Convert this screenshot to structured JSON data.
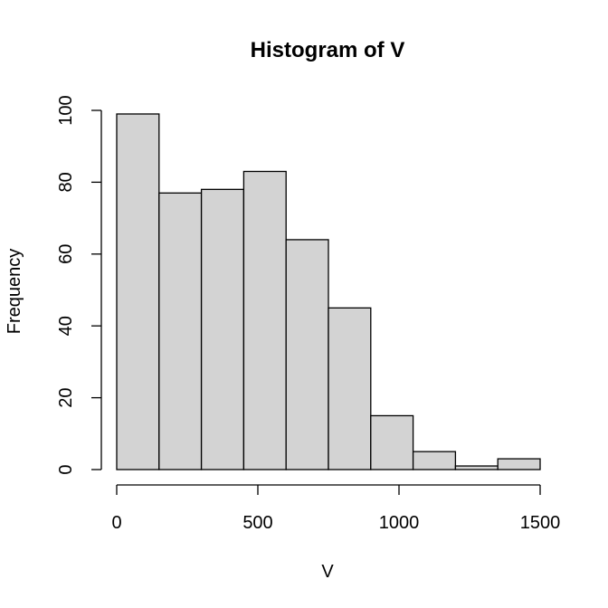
{
  "chart_data": {
    "type": "bar",
    "title": "Histogram of V",
    "xlabel": "V",
    "ylabel": "Frequency",
    "bin_width": 150,
    "bins": [
      {
        "start": 0,
        "end": 150,
        "count": 99
      },
      {
        "start": 150,
        "end": 300,
        "count": 77
      },
      {
        "start": 300,
        "end": 450,
        "count": 78
      },
      {
        "start": 450,
        "end": 600,
        "count": 83
      },
      {
        "start": 600,
        "end": 750,
        "count": 64
      },
      {
        "start": 750,
        "end": 900,
        "count": 45
      },
      {
        "start": 900,
        "end": 1050,
        "count": 15
      },
      {
        "start": 1050,
        "end": 1200,
        "count": 5
      },
      {
        "start": 1200,
        "end": 1350,
        "count": 1
      },
      {
        "start": 1350,
        "end": 1500,
        "count": 3
      }
    ],
    "x_ticks": [
      0,
      500,
      1000,
      1500
    ],
    "x_tick_labels": [
      "0",
      "500",
      "1000",
      "1500"
    ],
    "y_ticks": [
      0,
      20,
      40,
      60,
      80,
      100
    ],
    "y_tick_labels": [
      "0",
      "20",
      "40",
      "60",
      "80",
      "100"
    ],
    "xlim": [
      0,
      1500
    ],
    "ylim": [
      0,
      100
    ],
    "grid": false,
    "legend": "none",
    "colors": {
      "bar_fill": "#d3d3d3",
      "bar_stroke": "#000000",
      "axis": "#000000",
      "background": "#ffffff"
    }
  }
}
